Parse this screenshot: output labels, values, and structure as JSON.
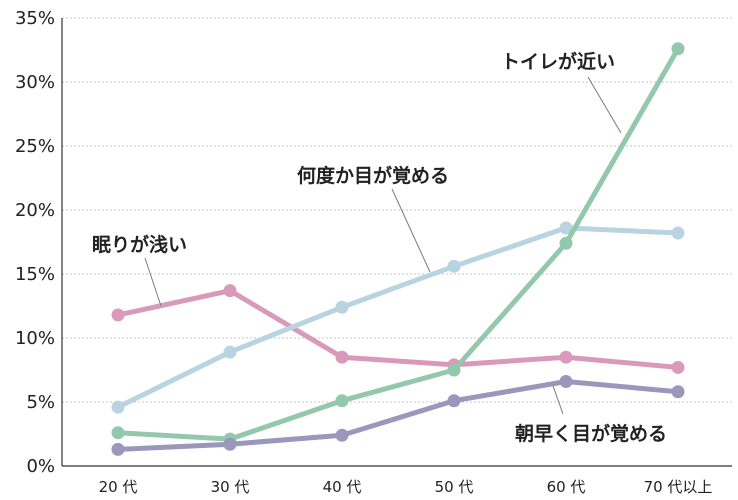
{
  "chart_data": {
    "type": "line",
    "categories": [
      "20 代",
      "30 代",
      "40 代",
      "50 代",
      "60 代",
      "70 代以上"
    ],
    "y_tick_labels": [
      "0%",
      "5%",
      "10%",
      "15%",
      "20%",
      "25%",
      "30%",
      "35%"
    ],
    "ylim": [
      0,
      35
    ],
    "grid": true,
    "series": [
      {
        "name": "眠りが浅い",
        "color": "#d99ab9",
        "values": [
          11.8,
          13.7,
          8.5,
          7.9,
          8.5,
          7.7
        ]
      },
      {
        "name": "何度か目が覚める",
        "color": "#b9d3e1",
        "values": [
          4.6,
          8.9,
          12.4,
          15.6,
          18.6,
          18.2
        ]
      },
      {
        "name": "トイレが近い",
        "color": "#94c8ad",
        "values": [
          2.6,
          2.1,
          5.1,
          7.5,
          17.4,
          32.6
        ]
      },
      {
        "name": "朝早く目が覚める",
        "color": "#9b96bb",
        "values": [
          1.3,
          1.7,
          2.4,
          5.1,
          6.6,
          5.8
        ]
      }
    ]
  }
}
